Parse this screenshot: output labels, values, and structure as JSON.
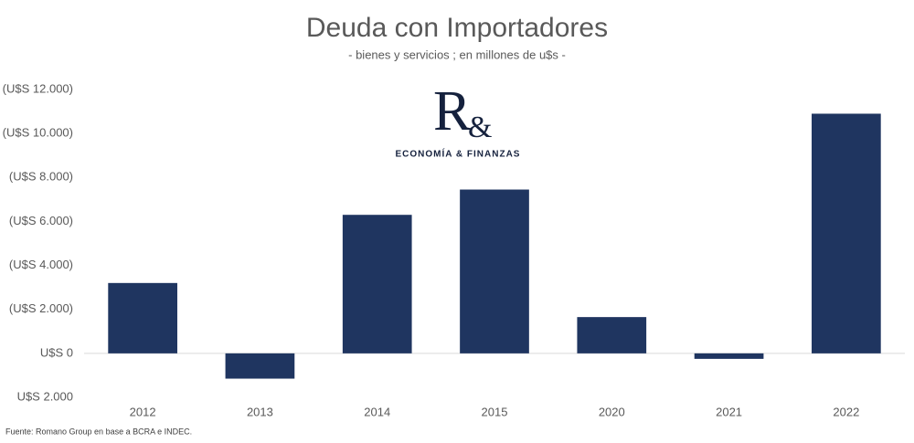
{
  "chart_data": {
    "type": "bar",
    "title": "Deuda con Importadores",
    "subtitle": "- bienes y servicios ; en millones de u$s -",
    "logo_mark": "R",
    "logo_ampersand": "&",
    "logo_text": "ECONOMÍA & FINANZAS",
    "source": "Fuente: Romano Group en base a BCRA e INDEC.",
    "categories": [
      "2012",
      "2013",
      "2014",
      "2015",
      "2020",
      "2021",
      "2022"
    ],
    "values": [
      3200,
      -1150,
      6300,
      7450,
      1650,
      -250,
      10900
    ],
    "color": "#1f3560",
    "ylim": [
      -2000,
      12000
    ],
    "yticks": [
      {
        "value": 12000,
        "label": "(U$S 12.000)"
      },
      {
        "value": 10000,
        "label": "(U$S 10.000)"
      },
      {
        "value": 8000,
        "label": "(U$S 8.000)"
      },
      {
        "value": 6000,
        "label": "(U$S 6.000)"
      },
      {
        "value": 4000,
        "label": "(U$S 4.000)"
      },
      {
        "value": 2000,
        "label": "(U$S 2.000)"
      },
      {
        "value": 0,
        "label": "U$S 0"
      },
      {
        "value": -2000,
        "label": "U$S 2.000"
      }
    ],
    "grid": false
  }
}
